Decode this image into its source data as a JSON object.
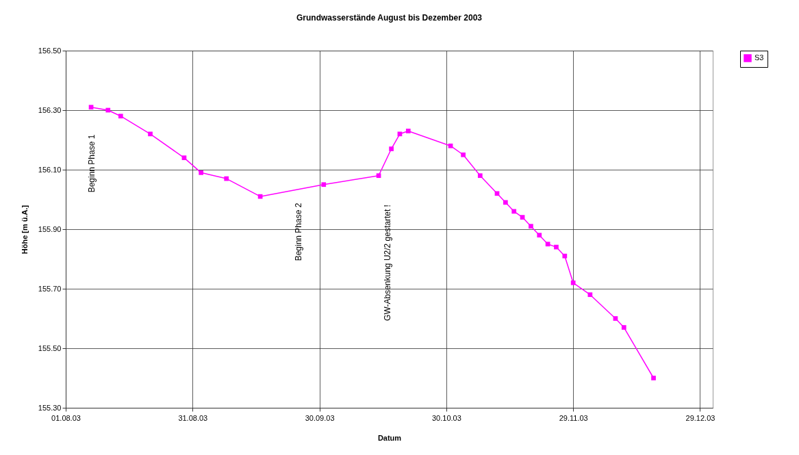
{
  "chart_data": {
    "type": "line",
    "title": "Grundwasserstände August bis Dezember 2003",
    "xlabel": "Datum",
    "ylabel": "Höhe [m ü.A.]",
    "x": [
      "2003-08-07",
      "2003-08-11",
      "2003-08-14",
      "2003-08-21",
      "2003-08-29",
      "2003-09-02",
      "2003-09-08",
      "2003-09-16",
      "2003-10-01",
      "2003-10-14",
      "2003-10-17",
      "2003-10-19",
      "2003-10-21",
      "2003-10-31",
      "2003-11-03",
      "2003-11-07",
      "2003-11-11",
      "2003-11-13",
      "2003-11-15",
      "2003-11-17",
      "2003-11-19",
      "2003-11-21",
      "2003-11-23",
      "2003-11-25",
      "2003-11-27",
      "2003-11-29",
      "2003-12-03",
      "2003-12-09",
      "2003-12-11",
      "2003-12-18"
    ],
    "series": [
      {
        "name": "S3",
        "color": "#ff00ff",
        "values": [
          156.31,
          156.3,
          156.28,
          156.22,
          156.14,
          156.09,
          156.07,
          156.01,
          156.05,
          156.08,
          156.17,
          156.22,
          156.23,
          156.18,
          156.15,
          156.08,
          156.02,
          155.99,
          155.96,
          155.94,
          155.91,
          155.88,
          155.85,
          155.84,
          155.81,
          155.72,
          155.68,
          155.6,
          155.57,
          155.4
        ]
      }
    ],
    "xlim": [
      "2003-08-01",
      "2004-01-01"
    ],
    "xticks": [
      {
        "value": "2003-08-01",
        "label": "01.08.03"
      },
      {
        "value": "2003-08-31",
        "label": "31.08.03"
      },
      {
        "value": "2003-09-30",
        "label": "30.09.03"
      },
      {
        "value": "2003-10-30",
        "label": "30.10.03"
      },
      {
        "value": "2003-11-29",
        "label": "29.11.03"
      },
      {
        "value": "2003-12-29",
        "label": "29.12.03"
      }
    ],
    "ylim": [
      155.3,
      156.5
    ],
    "yticks": [
      {
        "value": 155.3,
        "label": "155.30"
      },
      {
        "value": 155.5,
        "label": "155.50"
      },
      {
        "value": 155.7,
        "label": "155.70"
      },
      {
        "value": 155.9,
        "label": "155.90"
      },
      {
        "value": 156.1,
        "label": "156.10"
      },
      {
        "value": 156.3,
        "label": "156.30"
      },
      {
        "value": 156.5,
        "label": "156.50"
      }
    ],
    "annotations": [
      "Beginn Phase 1",
      "Beginn Phase 2",
      "GW-Absenkung U2/2 gestartet !"
    ],
    "grid": true,
    "legend": "right",
    "marker": "square",
    "line_style": "solid"
  }
}
